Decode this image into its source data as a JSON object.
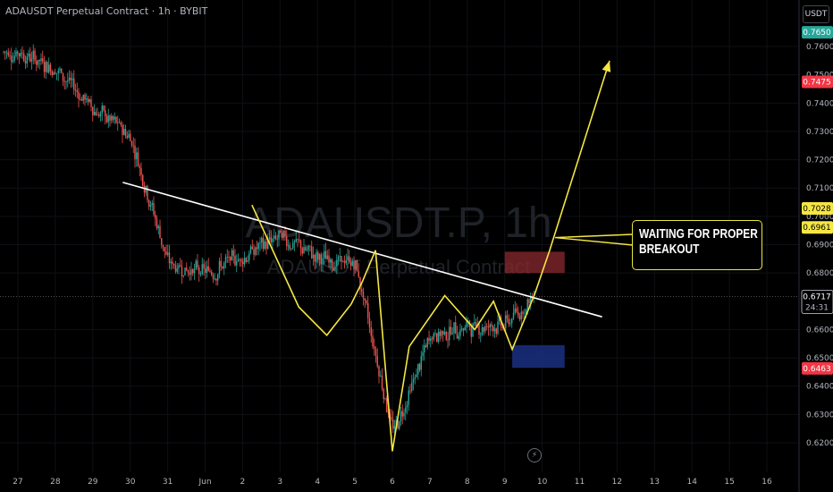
{
  "header": {
    "symbol_title": "ADAUSDT Perpetual Contract · 1h · BYBIT",
    "currency_label": "USDT"
  },
  "watermark": {
    "symbol": "ADAUSDT.P, 1h",
    "description": "ADAUSDT Perpetual Contract"
  },
  "annotation": {
    "text_line1": "WAITING FOR PROPER",
    "text_line2": "BREAKOUT"
  },
  "price_labels": {
    "high_label": "0.7650",
    "red_label_upper": "0.7475",
    "yellow_label_upper": "0.7028",
    "yellow_label_lower": "0.6961",
    "current_price": "0.6717",
    "countdown": "24:31",
    "red_label_lower": "0.6463"
  },
  "icons": {
    "flash": "lightning-icon"
  },
  "colors": {
    "background": "#000000",
    "up_candle": "#26a69a",
    "down_candle": "#ef5350",
    "trendline": "#ffffff",
    "drawing": "#f5e642",
    "resistance_zone": "#8b2a2f",
    "support_zone": "#1a2d7a",
    "label_green": "#26a69a",
    "label_red": "#f23645",
    "label_yellow": "#f5e642"
  },
  "chart_data": {
    "type": "candlestick",
    "symbol": "ADAUSDT Perpetual Contract",
    "timeframe": "1h",
    "exchange": "BYBIT",
    "y_axis": {
      "ticks": [
        "0.7600",
        "0.7500",
        "0.7400",
        "0.7300",
        "0.7200",
        "0.7100",
        "0.7000",
        "0.6900",
        "0.6800",
        "0.6600",
        "0.6500",
        "0.6400",
        "0.6300",
        "0.6200"
      ],
      "range": [
        0.615,
        0.77
      ]
    },
    "x_axis": {
      "ticks": [
        "27",
        "28",
        "29",
        "30",
        "31",
        "Jun",
        "2",
        "3",
        "4",
        "5",
        "6",
        "7",
        "8",
        "9",
        "10",
        "11",
        "12",
        "13",
        "14",
        "15",
        "16"
      ]
    },
    "price_path": [
      [
        "27",
        0.758
      ],
      [
        "28",
        0.752
      ],
      [
        "29",
        0.738
      ],
      [
        "30",
        0.728
      ],
      [
        "31",
        0.683
      ],
      [
        "Jun",
        0.68
      ],
      [
        "2",
        0.686
      ],
      [
        "3",
        0.693
      ],
      [
        "4",
        0.685
      ],
      [
        "5",
        0.683
      ],
      [
        "6",
        0.623
      ],
      [
        "7",
        0.658
      ],
      [
        "8",
        0.661
      ],
      [
        "9",
        0.662
      ],
      [
        "9.8",
        0.672
      ]
    ],
    "current_price": 0.6717,
    "descending_trendline": {
      "from": [
        "29.8",
        0.712
      ],
      "to": [
        "11.6",
        0.6645
      ]
    },
    "resistance_zone": {
      "from": "9.0",
      "to": "10.6",
      "low": 0.68,
      "high": 0.6875
    },
    "support_zone": {
      "from": "9.2",
      "to": "10.6",
      "low": 0.6465,
      "high": 0.6545
    },
    "projected_path": [
      [
        "9.8",
        0.6725
      ],
      [
        "10.2",
        0.688
      ],
      [
        "11.8",
        0.755
      ]
    ]
  }
}
